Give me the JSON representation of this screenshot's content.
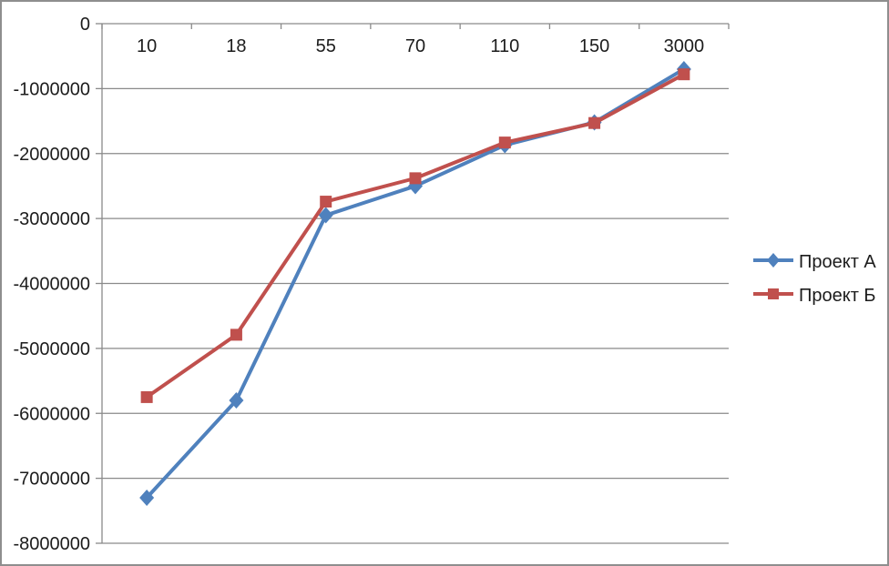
{
  "chart_data": {
    "type": "line",
    "title": "",
    "xlabel": "",
    "ylabel": "",
    "categories": [
      "10",
      "18",
      "55",
      "70",
      "110",
      "150",
      "3000"
    ],
    "series": [
      {
        "name": "Проект А",
        "color": "#4F81BD",
        "marker": "diamond",
        "values": [
          -7300000,
          -5800000,
          -2950000,
          -2500000,
          -1870000,
          -1520000,
          -700000
        ]
      },
      {
        "name": "Проект Б",
        "color": "#C0504D",
        "marker": "square",
        "values": [
          -5750000,
          -4790000,
          -2740000,
          -2380000,
          -1830000,
          -1530000,
          -780000
        ]
      }
    ],
    "ylim": [
      -8000000,
      0
    ],
    "y_ticks": [
      "0",
      "-1000000",
      "-2000000",
      "-3000000",
      "-4000000",
      "-5000000",
      "-6000000",
      "-7000000",
      "-8000000"
    ],
    "grid": "horizontal",
    "legend_position": "right",
    "grid_color": "#8a8a8a",
    "axis_color": "#8a8a8a",
    "text_color": "#1c1c1c",
    "frame_border_color": "#8e8e8e"
  }
}
